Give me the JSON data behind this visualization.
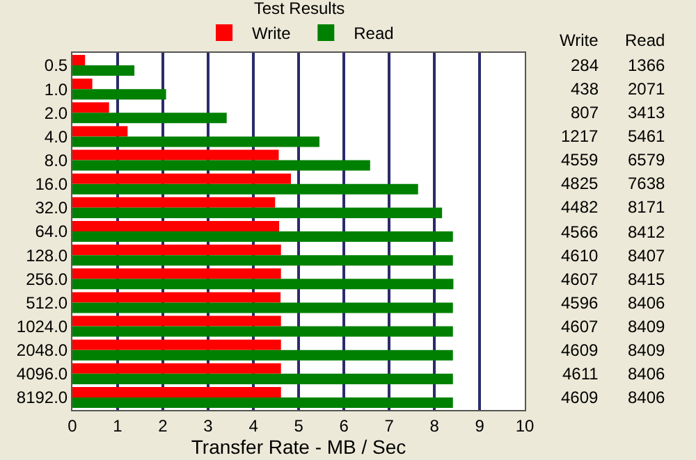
{
  "chart_data": {
    "type": "bar",
    "orientation": "horizontal",
    "title": "Test Results",
    "xlabel": "Transfer Rate - MB / Sec",
    "categories": [
      "0.5",
      "1.0",
      "2.0",
      "4.0",
      "8.0",
      "16.0",
      "32.0",
      "64.0",
      "128.0",
      "256.0",
      "512.0",
      "1024.0",
      "2048.0",
      "4096.0",
      "8192.0"
    ],
    "series": [
      {
        "name": "Write",
        "color": "#ff0000",
        "values": [
          0.28,
          0.44,
          0.81,
          1.22,
          4.56,
          4.83,
          4.48,
          4.57,
          4.61,
          4.61,
          4.6,
          4.61,
          4.61,
          4.61,
          4.61
        ]
      },
      {
        "name": "Read",
        "color": "#008000",
        "values": [
          1.37,
          2.07,
          3.41,
          5.46,
          6.58,
          7.64,
          8.17,
          8.41,
          8.41,
          8.42,
          8.41,
          8.41,
          8.41,
          8.41,
          8.41
        ]
      }
    ],
    "annotations": [
      "284",
      "438",
      "807",
      "1217",
      "4559",
      "4825",
      "4482",
      "4566",
      "4610",
      "4607",
      "4596",
      "4607",
      "4609",
      "4611",
      "4609",
      "1366",
      "2071",
      "3413",
      "5461",
      "6579",
      "7638",
      "8171",
      "8412",
      "8407",
      "8415",
      "8406",
      "8409",
      "8409",
      "8406",
      "8406"
    ],
    "xlim": [
      0,
      10
    ],
    "xticks": [
      0,
      1,
      2,
      3,
      4,
      5,
      6,
      7,
      8,
      9,
      10
    ],
    "grid": "x",
    "legend": "top"
  }
}
